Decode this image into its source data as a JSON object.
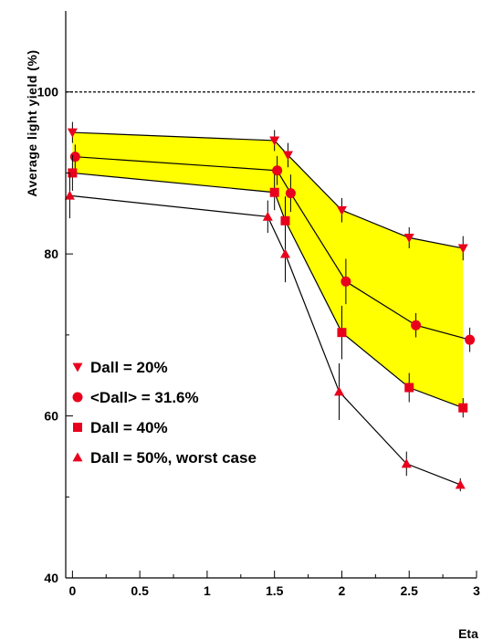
{
  "chart_data": {
    "type": "line",
    "title": "",
    "xlabel": "Eta",
    "ylabel": "Average light yield (%)",
    "xlim": [
      -0.05,
      3.0
    ],
    "ylim": [
      40,
      110
    ],
    "x_ticks": [
      "0",
      "0.5",
      "1",
      "1.5",
      "2",
      "2.5",
      "3"
    ],
    "y_ticks": [
      "40",
      "60",
      "80",
      "100"
    ],
    "reference_line": {
      "y": 100,
      "style": "dashed"
    },
    "band": {
      "between": [
        "Dall = 20%",
        "Dall = 40%"
      ],
      "color": "#ffff00"
    },
    "legend_position": "lower-left",
    "series": [
      {
        "name": "Dall = 20%",
        "marker": "triangle-down",
        "color": "#e8001c",
        "x": [
          0.0,
          1.5,
          1.6,
          2.0,
          2.5,
          2.9
        ],
        "y": [
          95.0,
          94.0,
          92.2,
          85.4,
          82.0,
          80.7
        ],
        "err": [
          1.3,
          1.3,
          1.5,
          1.5,
          1.3,
          1.5
        ]
      },
      {
        "name": "<Dall> = 31.6%",
        "marker": "circle",
        "color": "#e8001c",
        "x": [
          0.02,
          1.52,
          1.62,
          2.03,
          2.55,
          2.95
        ],
        "y": [
          92.0,
          90.3,
          87.5,
          76.6,
          71.2,
          69.4
        ],
        "err": [
          1.5,
          1.8,
          2.3,
          2.8,
          1.5,
          1.5
        ]
      },
      {
        "name": "Dall = 40%",
        "marker": "square",
        "color": "#e8001c",
        "x": [
          0.0,
          1.5,
          1.58,
          2.0,
          2.5,
          2.9
        ],
        "y": [
          90.0,
          87.6,
          84.1,
          70.3,
          63.5,
          61.0
        ],
        "err": [
          2.2,
          2.2,
          3.0,
          3.3,
          1.8,
          1.2
        ]
      },
      {
        "name": "Dall = 50%, worst case",
        "marker": "triangle-up",
        "color": "#e8001c",
        "x": [
          -0.02,
          1.45,
          1.58,
          1.98,
          2.48,
          2.88
        ],
        "y": [
          87.2,
          84.6,
          80.0,
          63.0,
          54.1,
          51.5
        ],
        "err": [
          2.8,
          2.0,
          3.5,
          3.5,
          1.5,
          0.8
        ]
      }
    ]
  }
}
